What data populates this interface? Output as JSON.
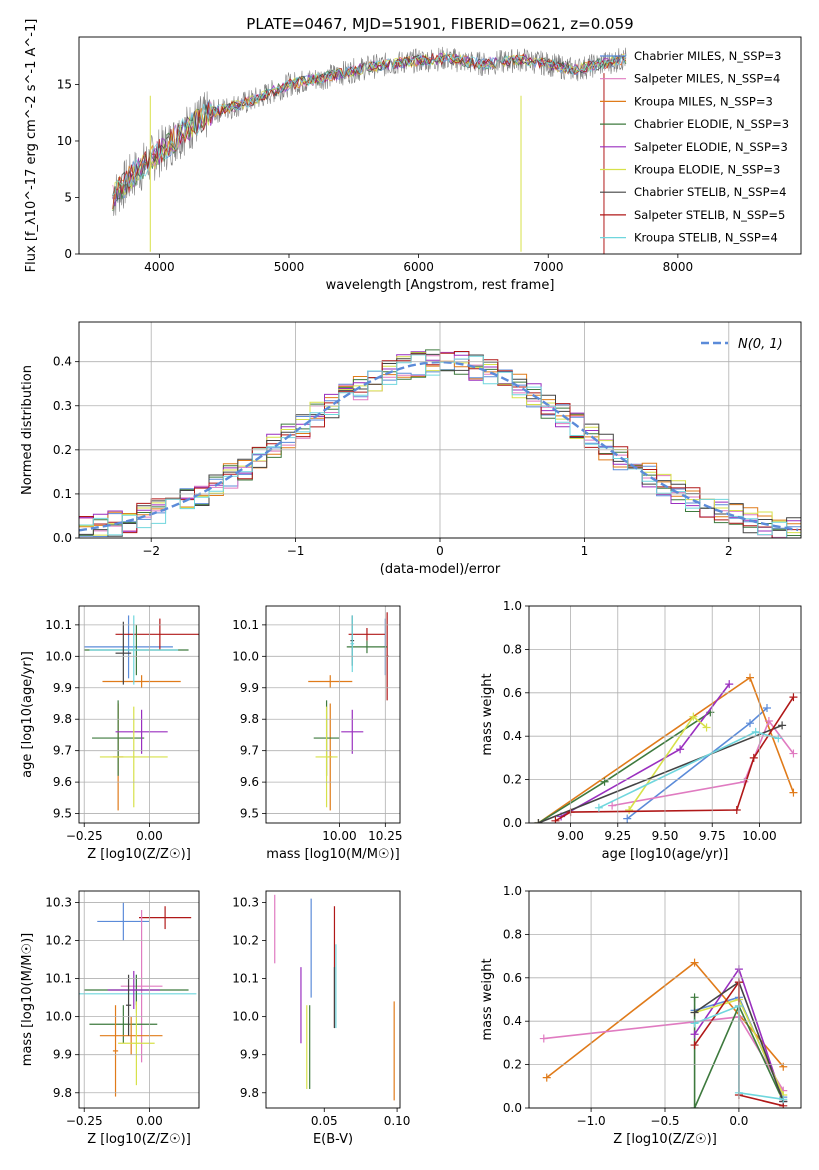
{
  "chart_data": [
    {
      "id": "spectrum",
      "type": "line",
      "title": "PLATE=0467, MJD=51901, FIBERID=0621, z=0.059",
      "xlabel": "wavelength [Angstrom, rest frame]",
      "ylabel": "Flux [f_λ10^-17 erg cm^-2 s^-1 A^-1]",
      "xlim": [
        3380,
        8950
      ],
      "ylim": [
        0,
        19.2
      ],
      "xticks": [
        4000,
        5000,
        6000,
        7000,
        8000
      ],
      "yticks": [
        0,
        5,
        10,
        15
      ],
      "grid": false,
      "legend_position": "top-right",
      "data_envelope": [
        [
          3640,
          5
        ],
        [
          3800,
          7
        ],
        [
          4000,
          9
        ],
        [
          4200,
          11
        ],
        [
          4400,
          12.5
        ],
        [
          4700,
          13.5
        ],
        [
          5000,
          15
        ],
        [
          5300,
          15.7
        ],
        [
          5600,
          16.5
        ],
        [
          5900,
          17.0
        ],
        [
          6200,
          17.3
        ],
        [
          6500,
          16.8
        ],
        [
          6800,
          17.2
        ],
        [
          7000,
          16.8
        ],
        [
          7200,
          16.3
        ],
        [
          7600,
          17.3
        ]
      ],
      "legend": [
        {
          "label": "Chabrier MILES, N_SSP=3",
          "color": "#5b8bd9"
        },
        {
          "label": "Salpeter MILES, N_SSP=4",
          "color": "#e07bc1"
        },
        {
          "label": "Kroupa MILES, N_SSP=3",
          "color": "#e07b1a"
        },
        {
          "label": "Chabrier ELODIE, N_SSP=3",
          "color": "#3e7a3e"
        },
        {
          "label": "Salpeter ELODIE, N_SSP=3",
          "color": "#9a2fbf"
        },
        {
          "label": "Kroupa ELODIE, N_SSP=3",
          "color": "#d7e14a"
        },
        {
          "label": "Chabrier STELIB, N_SSP=4",
          "color": "#444444"
        },
        {
          "label": "Salpeter STELIB, N_SSP=5",
          "color": "#b01818"
        },
        {
          "label": "Kroupa STELIB, N_SSP=4",
          "color": "#6fd6dd"
        }
      ]
    },
    {
      "id": "residuals",
      "type": "line",
      "xlabel": "(data-model)/error",
      "ylabel": "Normed distribution",
      "xlim": [
        -2.5,
        2.5
      ],
      "ylim": [
        0,
        0.49
      ],
      "xticks": [
        -2,
        -1,
        0,
        1,
        2
      ],
      "yticks": [
        0.0,
        0.1,
        0.2,
        0.3,
        0.4
      ],
      "grid": true,
      "legend_position": "top-right",
      "legend": [
        {
          "label": "N(0, 1)",
          "color": "#5b8bd9"
        }
      ],
      "bin_width": 0.1
    },
    {
      "id": "age_vs_z",
      "type": "scatter",
      "xlabel": "Z [log10(Z/Z☉)]",
      "ylabel": "age  [log10(age/yr)]",
      "xlim": [
        -0.27,
        0.19
      ],
      "ylim": [
        9.47,
        10.16
      ],
      "xticks": [
        -0.25,
        0.0
      ],
      "yticks": [
        9.5,
        9.6,
        9.7,
        9.8,
        9.9,
        10.0,
        10.1
      ],
      "grid": true,
      "points": [
        {
          "x": -0.08,
          "y": 10.03,
          "ex": 0.17,
          "ey": 0.1,
          "color": "#5b8bd9"
        },
        {
          "x": -0.03,
          "y": 9.92,
          "ex": 0.15,
          "ey": 0.02,
          "color": "#e07b1a"
        },
        {
          "x": -0.12,
          "y": 9.68,
          "ex": 0.02,
          "ey": 0.17,
          "color": "#e07b1a"
        },
        {
          "x": 0.04,
          "y": 10.07,
          "ex": 0.17,
          "ey": 0.05,
          "color": "#b01818"
        },
        {
          "x": -0.05,
          "y": 10.02,
          "ex": 0.2,
          "ey": 0.08,
          "color": "#3e7a3e"
        },
        {
          "x": -0.12,
          "y": 9.74,
          "ex": 0.1,
          "ey": 0.12,
          "color": "#3e7a3e"
        },
        {
          "x": -0.03,
          "y": 9.76,
          "ex": 0.1,
          "ey": 0.07,
          "color": "#9a2fbf"
        },
        {
          "x": -0.06,
          "y": 9.68,
          "ex": 0.13,
          "ey": 0.16,
          "color": "#d7e14a"
        },
        {
          "x": -0.06,
          "y": 10.02,
          "ex": 0.17,
          "ey": 0.11,
          "color": "#6fd6dd"
        },
        {
          "x": -0.1,
          "y": 10.01,
          "ex": 0.03,
          "ey": 0.1,
          "color": "#444444"
        }
      ]
    },
    {
      "id": "age_vs_mass",
      "type": "scatter",
      "xlabel": "mass [log10(M/M☉)]",
      "ylabel": "",
      "xlim": [
        9.6,
        10.33
      ],
      "ylim": [
        9.47,
        10.16
      ],
      "xticks": [
        10.0,
        10.25
      ],
      "yticks": [
        9.5,
        9.6,
        9.7,
        9.8,
        9.9,
        10.0,
        10.1
      ],
      "grid": true,
      "points": [
        {
          "x": 10.25,
          "y": 10.03,
          "ex": 0.01,
          "ey": 0.09,
          "color": "#5b8bd9"
        },
        {
          "x": 9.95,
          "y": 9.92,
          "ex": 0.12,
          "ey": 0.02,
          "color": "#e07b1a"
        },
        {
          "x": 9.95,
          "y": 9.68,
          "ex": 0.01,
          "ey": 0.17,
          "color": "#e07b1a"
        },
        {
          "x": 10.26,
          "y": 10.0,
          "ex": 0.01,
          "ey": 0.14,
          "color": "#b01818"
        },
        {
          "x": 10.15,
          "y": 10.07,
          "ex": 0.1,
          "ey": 0.02,
          "color": "#b01818"
        },
        {
          "x": 10.07,
          "y": 10.05,
          "ex": 0.01,
          "ey": 0.08,
          "color": "#444444"
        },
        {
          "x": 10.15,
          "y": 10.03,
          "ex": 0.11,
          "ey": 0.02,
          "color": "#3e7a3e"
        },
        {
          "x": 9.93,
          "y": 9.74,
          "ex": 0.07,
          "ey": 0.12,
          "color": "#3e7a3e"
        },
        {
          "x": 10.07,
          "y": 9.76,
          "ex": 0.06,
          "ey": 0.07,
          "color": "#9a2fbf"
        },
        {
          "x": 9.93,
          "y": 9.68,
          "ex": 0.06,
          "ey": 0.16,
          "color": "#d7e14a"
        },
        {
          "x": 10.07,
          "y": 10.04,
          "ex": 0.01,
          "ey": 0.09,
          "color": "#6fd6dd"
        }
      ]
    },
    {
      "id": "weight_vs_age",
      "type": "line",
      "xlabel": "age  [log10(age/yr)]",
      "ylabel": "mass weight",
      "xlim": [
        8.78,
        10.22
      ],
      "ylim": [
        0,
        1.0
      ],
      "xticks": [
        9.0,
        9.25,
        9.5,
        9.75,
        10.0
      ],
      "yticks": [
        0.0,
        0.2,
        0.4,
        0.6,
        0.8,
        1.0
      ],
      "grid": true,
      "series": [
        {
          "color": "#5b8bd9",
          "points": [
            [
              9.3,
              0.02
            ],
            [
              9.95,
              0.46
            ],
            [
              10.04,
              0.53
            ]
          ]
        },
        {
          "color": "#e07b1a",
          "points": [
            [
              8.83,
              0.0
            ],
            [
              9.95,
              0.67
            ],
            [
              10.18,
              0.14
            ]
          ]
        },
        {
          "color": "#e07bc1",
          "points": [
            [
              9.22,
              0.08
            ],
            [
              9.92,
              0.19
            ],
            [
              10.05,
              0.47
            ],
            [
              10.18,
              0.32
            ]
          ]
        },
        {
          "color": "#3e7a3e",
          "points": [
            [
              8.83,
              0.0
            ],
            [
              9.18,
              0.19
            ],
            [
              9.74,
              0.51
            ]
          ]
        },
        {
          "color": "#9a2fbf",
          "points": [
            [
              8.95,
              0.03
            ],
            [
              9.58,
              0.34
            ],
            [
              9.84,
              0.64
            ]
          ]
        },
        {
          "color": "#d7e14a",
          "points": [
            [
              9.31,
              0.06
            ],
            [
              9.65,
              0.49
            ],
            [
              9.72,
              0.44
            ]
          ]
        },
        {
          "color": "#444444",
          "points": [
            [
              8.83,
              0.0
            ],
            [
              10.12,
              0.45
            ]
          ]
        },
        {
          "color": "#b01818",
          "points": [
            [
              8.92,
              0.01
            ],
            [
              9.0,
              0.05
            ],
            [
              9.88,
              0.06
            ],
            [
              9.97,
              0.3
            ],
            [
              10.18,
              0.58
            ]
          ]
        },
        {
          "color": "#6fd6dd",
          "points": [
            [
              9.15,
              0.07
            ],
            [
              9.98,
              0.42
            ],
            [
              10.1,
              0.39
            ]
          ]
        }
      ]
    },
    {
      "id": "mass_vs_z",
      "type": "scatter",
      "xlabel": "Z [log10(Z/Z☉)]",
      "ylabel": "mass [log10(M/M☉)]",
      "xlim": [
        -0.27,
        0.19
      ],
      "ylim": [
        9.76,
        10.33
      ],
      "xticks": [
        -0.25,
        0.0
      ],
      "yticks": [
        9.8,
        9.9,
        10.0,
        10.1,
        10.2,
        10.3
      ],
      "grid": true,
      "points": [
        {
          "x": -0.1,
          "y": 10.25,
          "ex": 0.1,
          "ey": 0.05,
          "color": "#5b8bd9"
        },
        {
          "x": 0.06,
          "y": 10.26,
          "ex": 0.1,
          "ey": 0.03,
          "color": "#b01818"
        },
        {
          "x": -0.03,
          "y": 10.08,
          "ex": 0.08,
          "ey": 0.2,
          "color": "#e07bc1"
        },
        {
          "x": -0.05,
          "y": 10.06,
          "ex": 0.23,
          "ey": 0.05,
          "color": "#6fd6dd"
        },
        {
          "x": -0.05,
          "y": 10.07,
          "ex": 0.2,
          "ey": 0.04,
          "color": "#3e7a3e"
        },
        {
          "x": -0.06,
          "y": 10.07,
          "ex": 0.1,
          "ey": 0.05,
          "color": "#9a2fbf"
        },
        {
          "x": -0.1,
          "y": 9.98,
          "ex": 0.13,
          "ey": 0.05,
          "color": "#3e7a3e"
        },
        {
          "x": -0.07,
          "y": 9.95,
          "ex": 0.12,
          "ey": 0.05,
          "color": "#e07b1a"
        },
        {
          "x": -0.13,
          "y": 9.91,
          "ex": 0.01,
          "ey": 0.12,
          "color": "#e07b1a"
        },
        {
          "x": -0.05,
          "y": 9.93,
          "ex": 0.07,
          "ey": 0.11,
          "color": "#d7e14a"
        },
        {
          "x": -0.08,
          "y": 10.03,
          "ex": 0.01,
          "ey": 0.08,
          "color": "#444444"
        }
      ]
    },
    {
      "id": "mass_vs_ebv",
      "type": "scatter",
      "xlabel": "E(B-V)",
      "ylabel": "",
      "xlim": [
        0.01,
        0.102
      ],
      "ylim": [
        9.76,
        10.33
      ],
      "xticks": [
        0.05,
        0.1
      ],
      "yticks": [
        9.8,
        9.9,
        10.0,
        10.1,
        10.2,
        10.3
      ],
      "grid": false,
      "points": [
        {
          "x": 0.016,
          "y": 10.23,
          "ey": 0.09,
          "color": "#e07bc1"
        },
        {
          "x": 0.034,
          "y": 10.03,
          "ey": 0.1,
          "color": "#9a2fbf"
        },
        {
          "x": 0.038,
          "y": 9.92,
          "ey": 0.11,
          "color": "#d7e14a"
        },
        {
          "x": 0.04,
          "y": 9.92,
          "ey": 0.11,
          "color": "#3e7a3e"
        },
        {
          "x": 0.041,
          "y": 10.18,
          "ey": 0.13,
          "color": "#5b8bd9"
        },
        {
          "x": 0.057,
          "y": 10.13,
          "ey": 0.16,
          "color": "#b01818"
        },
        {
          "x": 0.057,
          "y": 10.05,
          "ey": 0.08,
          "color": "#444444"
        },
        {
          "x": 0.058,
          "y": 10.08,
          "ey": 0.11,
          "color": "#6fd6dd"
        },
        {
          "x": 0.098,
          "y": 9.91,
          "ey": 0.13,
          "color": "#e07b1a"
        }
      ]
    },
    {
      "id": "weight_vs_z",
      "type": "line",
      "xlabel": "Z [log10(Z/Z☉)]",
      "ylabel": "mass weight",
      "xlim": [
        -1.42,
        0.42
      ],
      "ylim": [
        0,
        1.0
      ],
      "xticks": [
        -1.0,
        -0.5,
        0.0
      ],
      "yticks": [
        0.0,
        0.2,
        0.4,
        0.6,
        0.8,
        1.0
      ],
      "grid": true,
      "series": [
        {
          "color": "#5b8bd9",
          "points": [
            [
              -0.3,
              0.45
            ],
            [
              0.0,
              0.51
            ],
            [
              0.3,
              0.05
            ]
          ]
        },
        {
          "color": "#e07b1a",
          "points": [
            [
              -1.3,
              0.14
            ],
            [
              -0.3,
              0.67
            ],
            [
              0.3,
              0.19
            ]
          ]
        },
        {
          "color": "#e07bc1",
          "points": [
            [
              -1.32,
              0.32
            ],
            [
              0.0,
              0.42
            ],
            [
              0.3,
              0.08
            ]
          ]
        },
        {
          "color": "#3e7a3e",
          "points": [
            [
              -0.3,
              0.51
            ],
            [
              -0.3,
              0.0
            ],
            [
              0.0,
              0.47
            ],
            [
              0.3,
              0.03
            ]
          ]
        },
        {
          "color": "#9a2fbf",
          "points": [
            [
              -0.3,
              0.34
            ],
            [
              0.0,
              0.64
            ],
            [
              0.3,
              0.03
            ]
          ]
        },
        {
          "color": "#d7e14a",
          "points": [
            [
              -0.3,
              0.44
            ],
            [
              0.0,
              0.5
            ],
            [
              0.3,
              0.06
            ]
          ]
        },
        {
          "color": "#444444",
          "points": [
            [
              -0.3,
              0.44
            ],
            [
              0.0,
              0.58
            ],
            [
              0.3,
              0.03
            ]
          ]
        },
        {
          "color": "#b01818",
          "points": [
            [
              -0.3,
              0.29
            ],
            [
              0.0,
              0.58
            ],
            [
              0.0,
              0.06
            ],
            [
              0.3,
              0.01
            ]
          ]
        },
        {
          "color": "#6fd6dd",
          "points": [
            [
              -0.3,
              0.39
            ],
            [
              0.0,
              0.47
            ],
            [
              0.0,
              0.07
            ],
            [
              0.3,
              0.04
            ]
          ]
        }
      ]
    }
  ]
}
